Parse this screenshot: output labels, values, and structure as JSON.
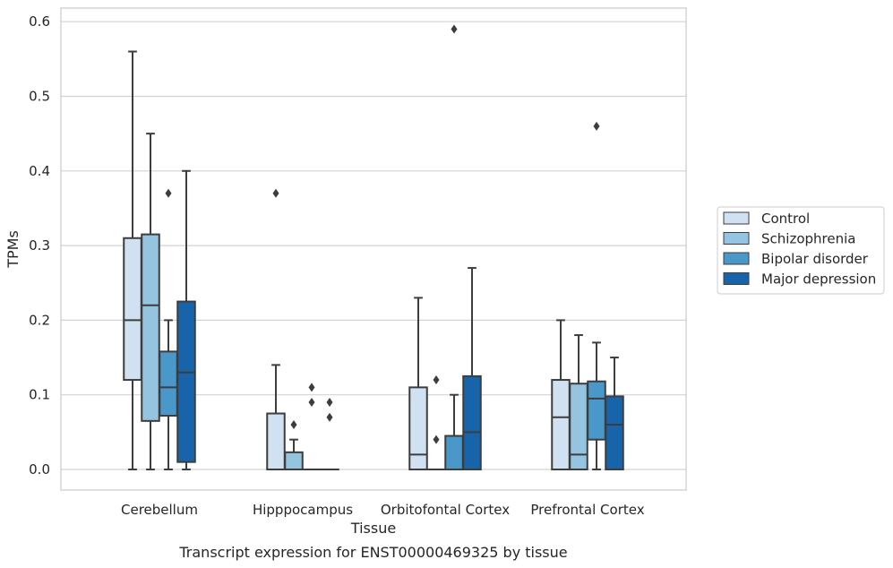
{
  "chart_data": {
    "type": "box",
    "caption": "Transcript expression for ENST00000469325 by tissue",
    "xlabel": "Tissue",
    "ylabel": "TPMs",
    "ylim": [
      -0.028,
      0.62
    ],
    "yticks": [
      "0.0",
      "0.1",
      "0.2",
      "0.3",
      "0.4",
      "0.5",
      "0.6"
    ],
    "grid": true,
    "legend_position": "right, outside plot",
    "categories": [
      "Cerebellum",
      "Hipppocampus",
      "Orbitofontal Cortex",
      "Prefrontal Cortex"
    ],
    "series": [
      {
        "name": "Control",
        "color": "#d0e1f2",
        "boxes": [
          {
            "whislo": 0.0,
            "q1": 0.12,
            "med": 0.2,
            "q3": 0.31,
            "whishi": 0.56,
            "fliers": []
          },
          {
            "whislo": 0.0,
            "q1": 0.0,
            "med": 0.0,
            "q3": 0.075,
            "whishi": 0.14,
            "fliers": [
              0.37
            ]
          },
          {
            "whislo": 0.0,
            "q1": 0.0,
            "med": 0.02,
            "q3": 0.11,
            "whishi": 0.23,
            "fliers": []
          },
          {
            "whislo": 0.0,
            "q1": 0.0,
            "med": 0.07,
            "q3": 0.12,
            "whishi": 0.2,
            "fliers": []
          }
        ]
      },
      {
        "name": "Schizophrenia",
        "color": "#94c4df",
        "boxes": [
          {
            "whislo": 0.0,
            "q1": 0.065,
            "med": 0.22,
            "q3": 0.315,
            "whishi": 0.45,
            "fliers": []
          },
          {
            "whislo": 0.0,
            "q1": 0.0,
            "med": 0.0,
            "q3": 0.023,
            "whishi": 0.04,
            "fliers": [
              0.06
            ]
          },
          {
            "whislo": 0.0,
            "q1": 0.0,
            "med": 0.0,
            "q3": 0.0,
            "whishi": 0.0,
            "fliers": [
              0.04,
              0.12
            ]
          },
          {
            "whislo": 0.0,
            "q1": 0.0,
            "med": 0.02,
            "q3": 0.115,
            "whishi": 0.18,
            "fliers": []
          }
        ]
      },
      {
        "name": "Bipolar disorder",
        "color": "#4a98c9",
        "boxes": [
          {
            "whislo": 0.0,
            "q1": 0.072,
            "med": 0.11,
            "q3": 0.158,
            "whishi": 0.2,
            "fliers": [
              0.37
            ]
          },
          {
            "whislo": 0.0,
            "q1": 0.0,
            "med": 0.0,
            "q3": 0.0,
            "whishi": 0.0,
            "fliers": [
              0.09,
              0.11
            ]
          },
          {
            "whislo": 0.0,
            "q1": 0.0,
            "med": 0.0,
            "q3": 0.045,
            "whishi": 0.1,
            "fliers": [
              0.59
            ]
          },
          {
            "whislo": 0.0,
            "q1": 0.04,
            "med": 0.095,
            "q3": 0.118,
            "whishi": 0.17,
            "fliers": [
              0.46
            ]
          }
        ]
      },
      {
        "name": "Major depression",
        "color": "#1764ab",
        "boxes": [
          {
            "whislo": 0.0,
            "q1": 0.01,
            "med": 0.13,
            "q3": 0.225,
            "whishi": 0.4,
            "fliers": []
          },
          {
            "whislo": 0.0,
            "q1": 0.0,
            "med": 0.0,
            "q3": 0.0,
            "whishi": 0.0,
            "fliers": [
              0.07,
              0.09
            ]
          },
          {
            "whislo": 0.0,
            "q1": 0.0,
            "med": 0.05,
            "q3": 0.125,
            "whishi": 0.27,
            "fliers": []
          },
          {
            "whislo": 0.0,
            "q1": 0.0,
            "med": 0.06,
            "q3": 0.098,
            "whishi": 0.15,
            "fliers": []
          }
        ]
      }
    ]
  }
}
